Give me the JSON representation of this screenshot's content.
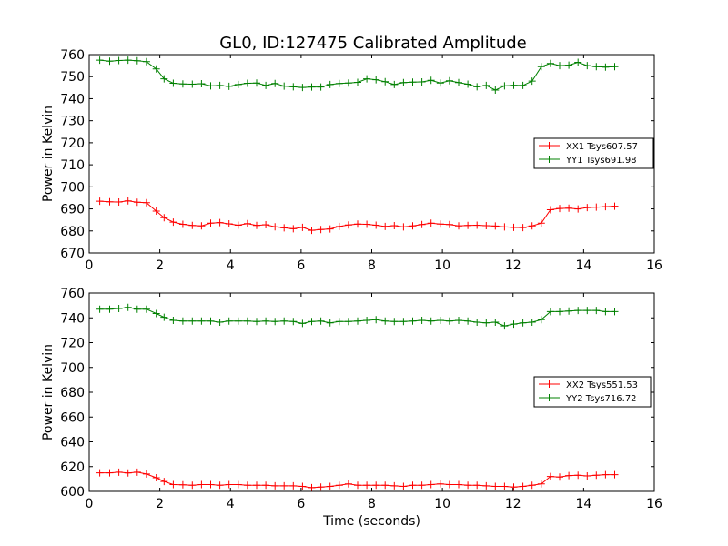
{
  "chart_data": [
    {
      "type": "line",
      "title": "GL0, ID:127475 Calibrated Amplitude",
      "xlabel": "",
      "ylabel": "Power in Kelvin",
      "xlim": [
        0,
        16
      ],
      "ylim": [
        670,
        760
      ],
      "xticks": [
        0,
        2,
        4,
        6,
        8,
        10,
        12,
        14,
        16
      ],
      "yticks": [
        670,
        680,
        690,
        700,
        710,
        720,
        730,
        740,
        750,
        760
      ],
      "grid": false,
      "legend_position": "right",
      "x": [
        0.3,
        0.58,
        0.84,
        1.1,
        1.36,
        1.62,
        1.9,
        2.12,
        2.38,
        2.65,
        2.92,
        3.18,
        3.44,
        3.7,
        3.96,
        4.22,
        4.48,
        4.74,
        5.0,
        5.26,
        5.52,
        5.78,
        6.04,
        6.3,
        6.56,
        6.82,
        7.08,
        7.34,
        7.6,
        7.86,
        8.12,
        8.38,
        8.64,
        8.9,
        9.16,
        9.42,
        9.68,
        9.94,
        10.2,
        10.46,
        10.72,
        10.98,
        11.24,
        11.5,
        11.76,
        12.02,
        12.28,
        12.54,
        12.8,
        13.06,
        13.32,
        13.58,
        13.84,
        14.1,
        14.36,
        14.62,
        14.88
      ],
      "series": [
        {
          "name": "XX1 Tsys607.57",
          "color": "#ff0000",
          "values": [
            693.5,
            693.2,
            693.1,
            693.6,
            693.0,
            692.8,
            689.0,
            686.0,
            684.0,
            683.0,
            682.5,
            682.3,
            683.5,
            683.8,
            683.2,
            682.6,
            683.3,
            682.5,
            682.8,
            681.9,
            681.4,
            681.0,
            681.6,
            680.3,
            680.6,
            680.9,
            682.0,
            682.7,
            683.1,
            683.0,
            682.6,
            682.0,
            682.4,
            681.8,
            682.3,
            682.9,
            683.5,
            683.1,
            682.9,
            682.3,
            682.5,
            682.6,
            682.4,
            682.2,
            681.8,
            681.6,
            681.5,
            682.3,
            683.5,
            689.6,
            690.2,
            690.3,
            690.0,
            690.6,
            690.8,
            691.0,
            691.2
          ]
        },
        {
          "name": "YY1 Tsys691.98",
          "color": "#008000",
          "values": [
            757.5,
            757.0,
            757.3,
            757.5,
            757.2,
            756.8,
            753.5,
            749.0,
            747.0,
            746.7,
            746.6,
            746.8,
            745.8,
            746.0,
            745.6,
            746.4,
            747.0,
            747.1,
            746.0,
            746.9,
            745.7,
            745.4,
            745.1,
            745.3,
            745.3,
            746.4,
            746.9,
            747.1,
            747.4,
            749.0,
            748.6,
            747.7,
            746.4,
            747.3,
            747.5,
            747.6,
            748.3,
            747.1,
            748.1,
            747.3,
            746.6,
            745.4,
            746.0,
            743.9,
            745.8,
            746.1,
            746.0,
            748.0,
            754.5,
            756.0,
            755.0,
            755.2,
            756.5,
            755.0,
            754.5,
            754.3,
            754.5
          ]
        }
      ]
    },
    {
      "type": "line",
      "title": "",
      "xlabel": "Time (seconds)",
      "ylabel": "Power in Kelvin",
      "xlim": [
        0,
        16
      ],
      "ylim": [
        600,
        760
      ],
      "xticks": [
        0,
        2,
        4,
        6,
        8,
        10,
        12,
        14,
        16
      ],
      "yticks": [
        600,
        620,
        640,
        660,
        680,
        700,
        720,
        740,
        760
      ],
      "grid": false,
      "legend_position": "right",
      "x": [
        0.3,
        0.58,
        0.84,
        1.1,
        1.36,
        1.62,
        1.9,
        2.12,
        2.38,
        2.65,
        2.92,
        3.18,
        3.44,
        3.7,
        3.96,
        4.22,
        4.48,
        4.74,
        5.0,
        5.26,
        5.52,
        5.78,
        6.04,
        6.3,
        6.56,
        6.82,
        7.08,
        7.34,
        7.6,
        7.86,
        8.12,
        8.38,
        8.64,
        8.9,
        9.16,
        9.42,
        9.68,
        9.94,
        10.2,
        10.46,
        10.72,
        10.98,
        11.24,
        11.5,
        11.76,
        12.02,
        12.28,
        12.54,
        12.8,
        13.06,
        13.32,
        13.58,
        13.84,
        14.1,
        14.36,
        14.62,
        14.88
      ],
      "series": [
        {
          "name": "XX2 Tsys551.53",
          "color": "#ff0000",
          "values": [
            615.0,
            615.0,
            615.5,
            614.8,
            615.5,
            614.0,
            611.0,
            608.0,
            605.5,
            605.3,
            605.0,
            605.5,
            605.5,
            605.0,
            605.5,
            605.5,
            605.0,
            605.0,
            605.0,
            604.5,
            604.5,
            604.5,
            604.0,
            603.0,
            603.5,
            604.0,
            605.0,
            606.0,
            605.0,
            605.0,
            605.0,
            605.0,
            604.5,
            604.0,
            605.0,
            605.0,
            605.5,
            606.0,
            605.5,
            605.5,
            605.0,
            605.0,
            604.5,
            604.0,
            604.0,
            603.5,
            604.0,
            605.0,
            606.0,
            612.0,
            611.5,
            612.8,
            613.0,
            612.5,
            613.0,
            613.5,
            613.5
          ]
        },
        {
          "name": "YY2 Tsys716.72",
          "color": "#008000",
          "values": [
            747.0,
            747.0,
            747.5,
            748.5,
            747.0,
            747.0,
            743.5,
            740.5,
            738.0,
            737.5,
            737.5,
            737.5,
            737.5,
            736.5,
            737.5,
            737.5,
            737.5,
            737.0,
            737.5,
            737.0,
            737.5,
            737.0,
            735.5,
            737.0,
            737.5,
            736.0,
            737.0,
            737.0,
            737.5,
            738.0,
            738.5,
            737.5,
            737.0,
            737.0,
            737.5,
            738.0,
            737.5,
            738.0,
            737.5,
            738.0,
            737.5,
            736.5,
            736.0,
            736.5,
            733.5,
            735.0,
            736.0,
            736.5,
            738.5,
            745.0,
            745.0,
            745.5,
            746.0,
            746.0,
            746.0,
            745.0,
            745.0
          ]
        }
      ]
    }
  ]
}
